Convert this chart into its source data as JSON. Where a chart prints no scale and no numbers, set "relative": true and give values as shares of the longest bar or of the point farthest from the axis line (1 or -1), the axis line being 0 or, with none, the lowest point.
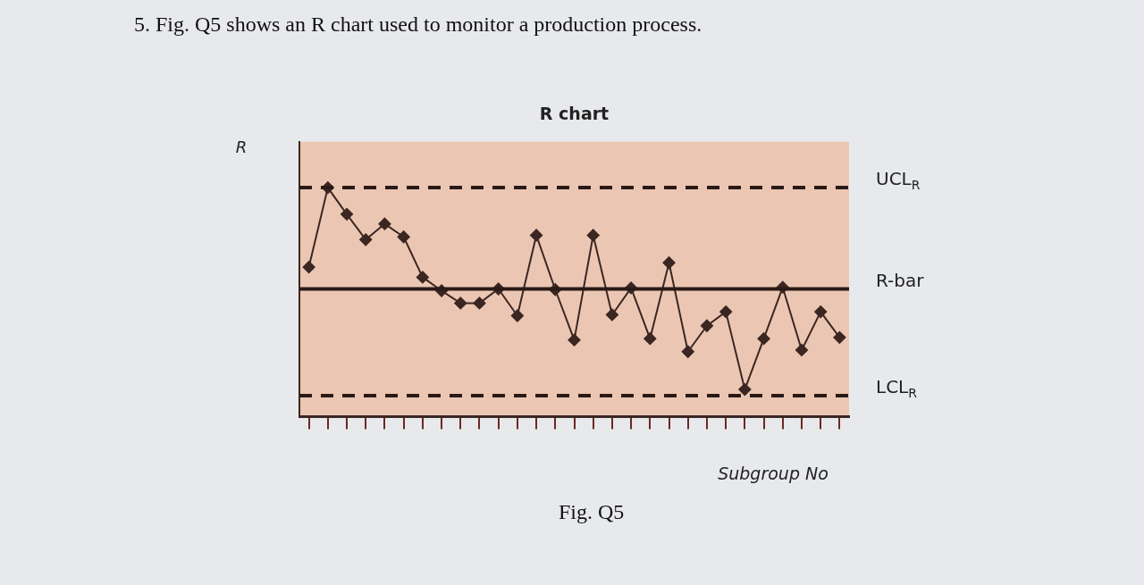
{
  "chart_data": {
    "type": "line",
    "title": "R chart",
    "ylabel": "R",
    "xlabel": "Subgroup No",
    "relative": true,
    "marker": "diamond",
    "line_style": "solid",
    "legend": false,
    "categories": [
      null,
      null,
      null,
      null,
      null,
      null,
      null,
      null,
      null,
      null,
      null,
      null,
      null,
      null,
      null,
      null,
      null,
      null,
      null,
      null,
      null,
      null,
      null,
      null,
      null,
      null,
      null,
      null,
      null
    ],
    "series": [
      {
        "color": "#3b2622",
        "values": [
          0.653,
          1,
          0.884,
          0.773,
          0.842,
          0.785,
          0.609,
          0.55,
          0.496,
          0.496,
          0.558,
          0.441,
          0.792,
          0.555,
          0.335,
          0.792,
          0.445,
          0.562,
          0.341,
          0.672,
          0.284,
          0.397,
          0.458,
          0.119,
          0.341,
          0.565,
          0.291,
          0.458,
          0.346
        ]
      }
    ],
    "ref_lines": [
      {
        "axis": "y",
        "value": 1,
        "label": "UCL$_{R}$",
        "line_style": "dashed",
        "color": "#2a1a16"
      },
      {
        "axis": "y",
        "value": 0.558,
        "label": "R-bar",
        "line_style": "solid",
        "color": "#2a1a16"
      },
      {
        "axis": "y",
        "value": 0.092,
        "label": "LCL$_{R}$",
        "line_style": "dashed",
        "color": "#2a1a16"
      }
    ],
    "annotations": [
      "5. Fig. Q5 shows an R chart used to monitor a production process.",
      "Fig. Q5"
    ]
  }
}
